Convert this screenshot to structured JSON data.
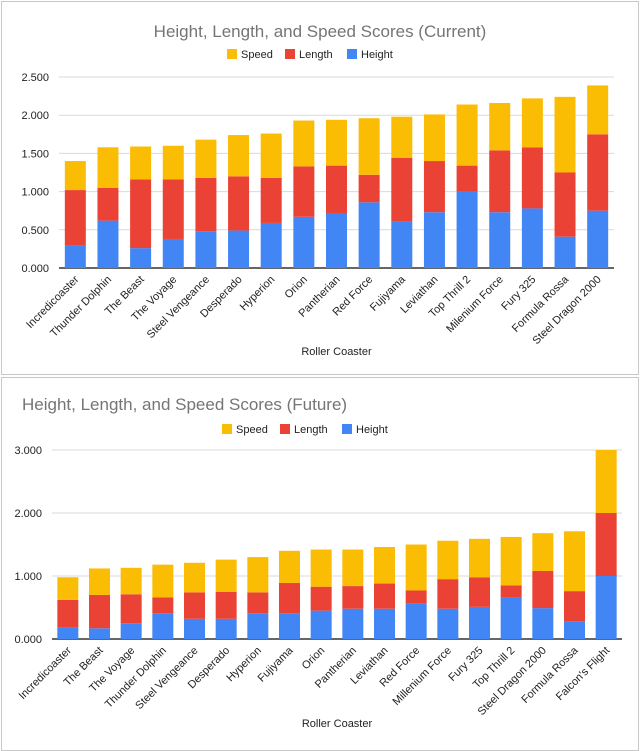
{
  "colors": {
    "height": "#4285f4",
    "length": "#ea4335",
    "speed": "#fbbc04",
    "grid": "#d9d9d9",
    "axis": "#333333",
    "title": "#757575"
  },
  "chart_data": [
    {
      "type": "bar",
      "stacked": true,
      "title": "Height, Length, and Speed Scores (Current)",
      "xlabel": "Roller Coaster",
      "ylabel": "",
      "ylim": [
        0,
        2.5
      ],
      "yticks": [
        "0.000",
        "0.500",
        "1.000",
        "1.500",
        "2.000",
        "2.500"
      ],
      "ytick_values": [
        0,
        0.5,
        1,
        1.5,
        2,
        2.5
      ],
      "grid": true,
      "legend_position": "top",
      "legend": [
        "Speed",
        "Length",
        "Height"
      ],
      "categories": [
        "Incredicoaster",
        "Thunder Dolphin",
        "The Beast",
        "The Voyage",
        "Steel Vengeance",
        "Desperado",
        "Hyperion",
        "Orion",
        "Pantherian",
        "Red Force",
        "Fujiyama",
        "Leviathan",
        "Top Thrill 2",
        "Milenium Force",
        "Fury 325",
        "Formula Rossa",
        "Steel Dragon 2000"
      ],
      "series": [
        {
          "name": "Height",
          "values": [
            0.29,
            0.62,
            0.26,
            0.38,
            0.48,
            0.49,
            0.59,
            0.67,
            0.72,
            0.86,
            0.61,
            0.73,
            1.0,
            0.73,
            0.78,
            0.41,
            0.75
          ]
        },
        {
          "name": "Length",
          "values": [
            0.73,
            0.43,
            0.9,
            0.78,
            0.7,
            0.71,
            0.59,
            0.66,
            0.62,
            0.36,
            0.83,
            0.67,
            0.34,
            0.81,
            0.8,
            0.84,
            1.0
          ]
        },
        {
          "name": "Speed",
          "values": [
            0.38,
            0.53,
            0.43,
            0.44,
            0.5,
            0.54,
            0.58,
            0.6,
            0.6,
            0.74,
            0.54,
            0.61,
            0.8,
            0.62,
            0.64,
            0.99,
            0.64
          ]
        }
      ]
    },
    {
      "type": "bar",
      "stacked": true,
      "title": "Height, Length, and Speed Scores (Future)",
      "xlabel": "Roller Coaster",
      "ylabel": "",
      "ylim": [
        0,
        3
      ],
      "yticks": [
        "0.000",
        "1.000",
        "2.000",
        "3.000"
      ],
      "ytick_values": [
        0,
        1,
        2,
        3
      ],
      "grid": true,
      "legend_position": "top",
      "legend": [
        "Speed",
        "Length",
        "Height"
      ],
      "categories": [
        "Incredicoaster",
        "The Beast",
        "The Voyage",
        "Thunder Dolphin",
        "Steel Vengeance",
        "Desperado",
        "Hyperion",
        "Fujiyama",
        "Orion",
        "Pantherian",
        "Leviathan",
        "Red Force",
        "Millenium Force",
        "Fury 325",
        "Top Thrill 2",
        "Steel Dragon 2000",
        "Formula Rossa",
        "Falcon's Flight"
      ],
      "series": [
        {
          "name": "Height",
          "values": [
            0.18,
            0.17,
            0.25,
            0.41,
            0.32,
            0.32,
            0.41,
            0.41,
            0.45,
            0.48,
            0.48,
            0.57,
            0.48,
            0.51,
            0.66,
            0.49,
            0.28,
            1.0
          ]
        },
        {
          "name": "Length",
          "values": [
            0.44,
            0.53,
            0.46,
            0.25,
            0.42,
            0.43,
            0.33,
            0.48,
            0.38,
            0.36,
            0.4,
            0.2,
            0.47,
            0.47,
            0.19,
            0.59,
            0.48,
            1.0
          ]
        },
        {
          "name": "Speed",
          "values": [
            0.36,
            0.42,
            0.42,
            0.52,
            0.47,
            0.51,
            0.56,
            0.51,
            0.59,
            0.58,
            0.58,
            0.73,
            0.61,
            0.61,
            0.77,
            0.6,
            0.95,
            1.0
          ]
        }
      ]
    }
  ]
}
